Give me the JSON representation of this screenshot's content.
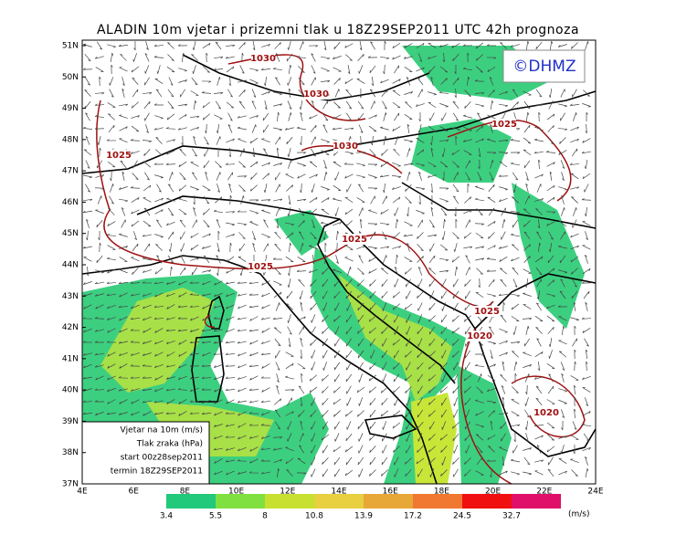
{
  "header": {
    "title": "ALADIN 10m vjetar i prizemni tlak u 18Z29SEP2011 UTC 42h prognoza",
    "badge": "©DHMZ"
  },
  "lat_labels": [
    "51N",
    "50N",
    "49N",
    "48N",
    "47N",
    "46N",
    "45N",
    "44N",
    "43N",
    "42N",
    "41N",
    "40N",
    "39N",
    "38N",
    "37N"
  ],
  "lon_labels": [
    "4E",
    "6E",
    "8E",
    "10E",
    "12E",
    "14E",
    "16E",
    "18E",
    "20E",
    "22E",
    "24E"
  ],
  "legend": [
    "Vjetar na 10m (m/s)",
    "Tlak zraka (hPa)",
    "start 00z28sep2011",
    "termin 18Z29SEP2011"
  ],
  "colorbar": {
    "labels": [
      3.4,
      5.5,
      8,
      10.8,
      13.9,
      17.2,
      24.5,
      32.7
    ],
    "unit": "(m/s)"
  },
  "isobars": [
    {
      "label": "1030"
    },
    {
      "label": "1030"
    },
    {
      "label": "1030"
    },
    {
      "label": "1025"
    },
    {
      "label": "1025"
    },
    {
      "label": "1025"
    },
    {
      "label": "1025"
    },
    {
      "label": "1025"
    },
    {
      "label": "1020"
    },
    {
      "label": "1020"
    }
  ]
}
